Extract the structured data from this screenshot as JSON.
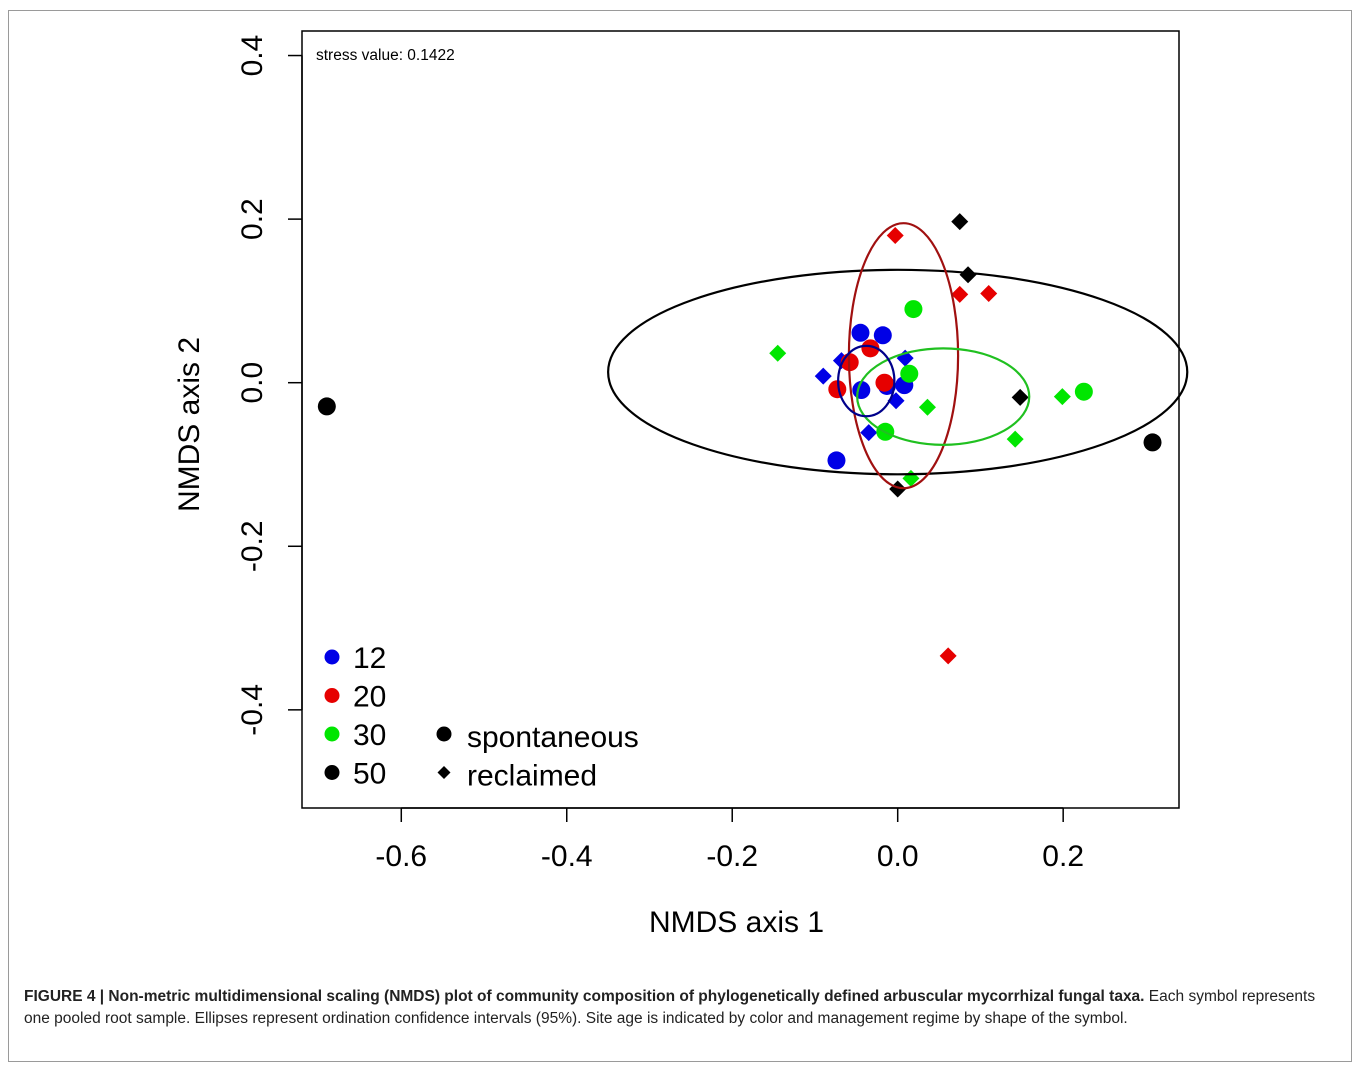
{
  "chart_data": {
    "type": "scatter",
    "annotation": "stress value: 0.1422",
    "xlabel": "NMDS axis 1",
    "ylabel": "NMDS axis 2",
    "xlim": [
      -0.72,
      0.34
    ],
    "ylim": [
      -0.52,
      0.43
    ],
    "xticks": [
      -0.6,
      -0.4,
      -0.2,
      0.0,
      0.2
    ],
    "xtick_labels": [
      "-0.6",
      "-0.4",
      "-0.2",
      "0.0",
      "0.2"
    ],
    "yticks": [
      -0.4,
      -0.2,
      0.0,
      0.2,
      0.4
    ],
    "ytick_labels": [
      "-0.4",
      "-0.2",
      "0.0",
      "0.2",
      "0.4"
    ],
    "colors": {
      "12": "#0000e6",
      "20": "#e60000",
      "30": "#00e600",
      "50": "#000000"
    },
    "series": [
      {
        "name": "12",
        "color": "#0000e6",
        "spontaneous": [
          [
            -0.045,
            0.061
          ],
          [
            -0.018,
            0.058
          ],
          [
            -0.044,
            -0.009
          ],
          [
            -0.013,
            -0.004
          ],
          [
            0.008,
            -0.003
          ],
          [
            -0.074,
            -0.095
          ]
        ],
        "reclaimed": [
          [
            -0.068,
            0.027
          ],
          [
            -0.09,
            0.008
          ],
          [
            0.009,
            0.03
          ],
          [
            -0.002,
            -0.022
          ],
          [
            -0.035,
            -0.061
          ]
        ]
      },
      {
        "name": "20",
        "color": "#e60000",
        "spontaneous": [
          [
            -0.058,
            0.025
          ],
          [
            -0.033,
            0.042
          ],
          [
            -0.016,
            0.0
          ],
          [
            -0.073,
            -0.008
          ]
        ],
        "reclaimed": [
          [
            -0.003,
            0.18
          ],
          [
            0.075,
            0.108
          ],
          [
            0.11,
            0.109
          ],
          [
            0.061,
            -0.334
          ]
        ]
      },
      {
        "name": "30",
        "color": "#00e600",
        "spontaneous": [
          [
            0.019,
            0.09
          ],
          [
            0.014,
            0.011
          ],
          [
            -0.015,
            -0.06
          ],
          [
            0.225,
            -0.011
          ]
        ],
        "reclaimed": [
          [
            -0.145,
            0.036
          ],
          [
            0.036,
            -0.03
          ],
          [
            0.142,
            -0.069
          ],
          [
            0.199,
            -0.017
          ],
          [
            0.016,
            -0.117
          ]
        ]
      },
      {
        "name": "50",
        "color": "#000000",
        "spontaneous": [
          [
            -0.69,
            -0.029
          ],
          [
            0.308,
            -0.073
          ]
        ],
        "reclaimed": [
          [
            0.075,
            0.197
          ],
          [
            0.085,
            0.132
          ],
          [
            0.148,
            -0.018
          ],
          [
            0.0,
            -0.13
          ]
        ]
      }
    ],
    "ellipses": [
      {
        "group": "50",
        "color": "#000000",
        "center": [
          0.0,
          0.013
        ],
        "rx": 0.35,
        "ry": 0.125
      },
      {
        "group": "20",
        "color": "#a01010",
        "center": [
          0.007,
          0.033
        ],
        "rx": 0.066,
        "ry": 0.162
      },
      {
        "group": "30",
        "color": "#20c020",
        "center": [
          0.055,
          -0.017
        ],
        "rx": 0.104,
        "ry": 0.059
      },
      {
        "group": "12",
        "color": "#00008b",
        "center": [
          -0.038,
          0.002
        ],
        "rx": 0.034,
        "ry": 0.043
      }
    ],
    "legend_age": [
      {
        "label": "12",
        "color": "#0000e6"
      },
      {
        "label": "20",
        "color": "#e60000"
      },
      {
        "label": "30",
        "color": "#00e600"
      },
      {
        "label": "50",
        "color": "#000000"
      }
    ],
    "legend_management": [
      {
        "label": "spontaneous",
        "shape": "circle"
      },
      {
        "label": "reclaimed",
        "shape": "diamond"
      }
    ]
  },
  "caption": {
    "bold": "FIGURE 4 | Non-metric multidimensional scaling (NMDS) plot of community composition of phylogenetically defined arbuscular mycorrhizal fungal taxa.",
    "text": " Each symbol represents one pooled root sample. Ellipses represent ordination confidence intervals (95%). Site age is indicated by color and management regime by shape of the symbol."
  }
}
